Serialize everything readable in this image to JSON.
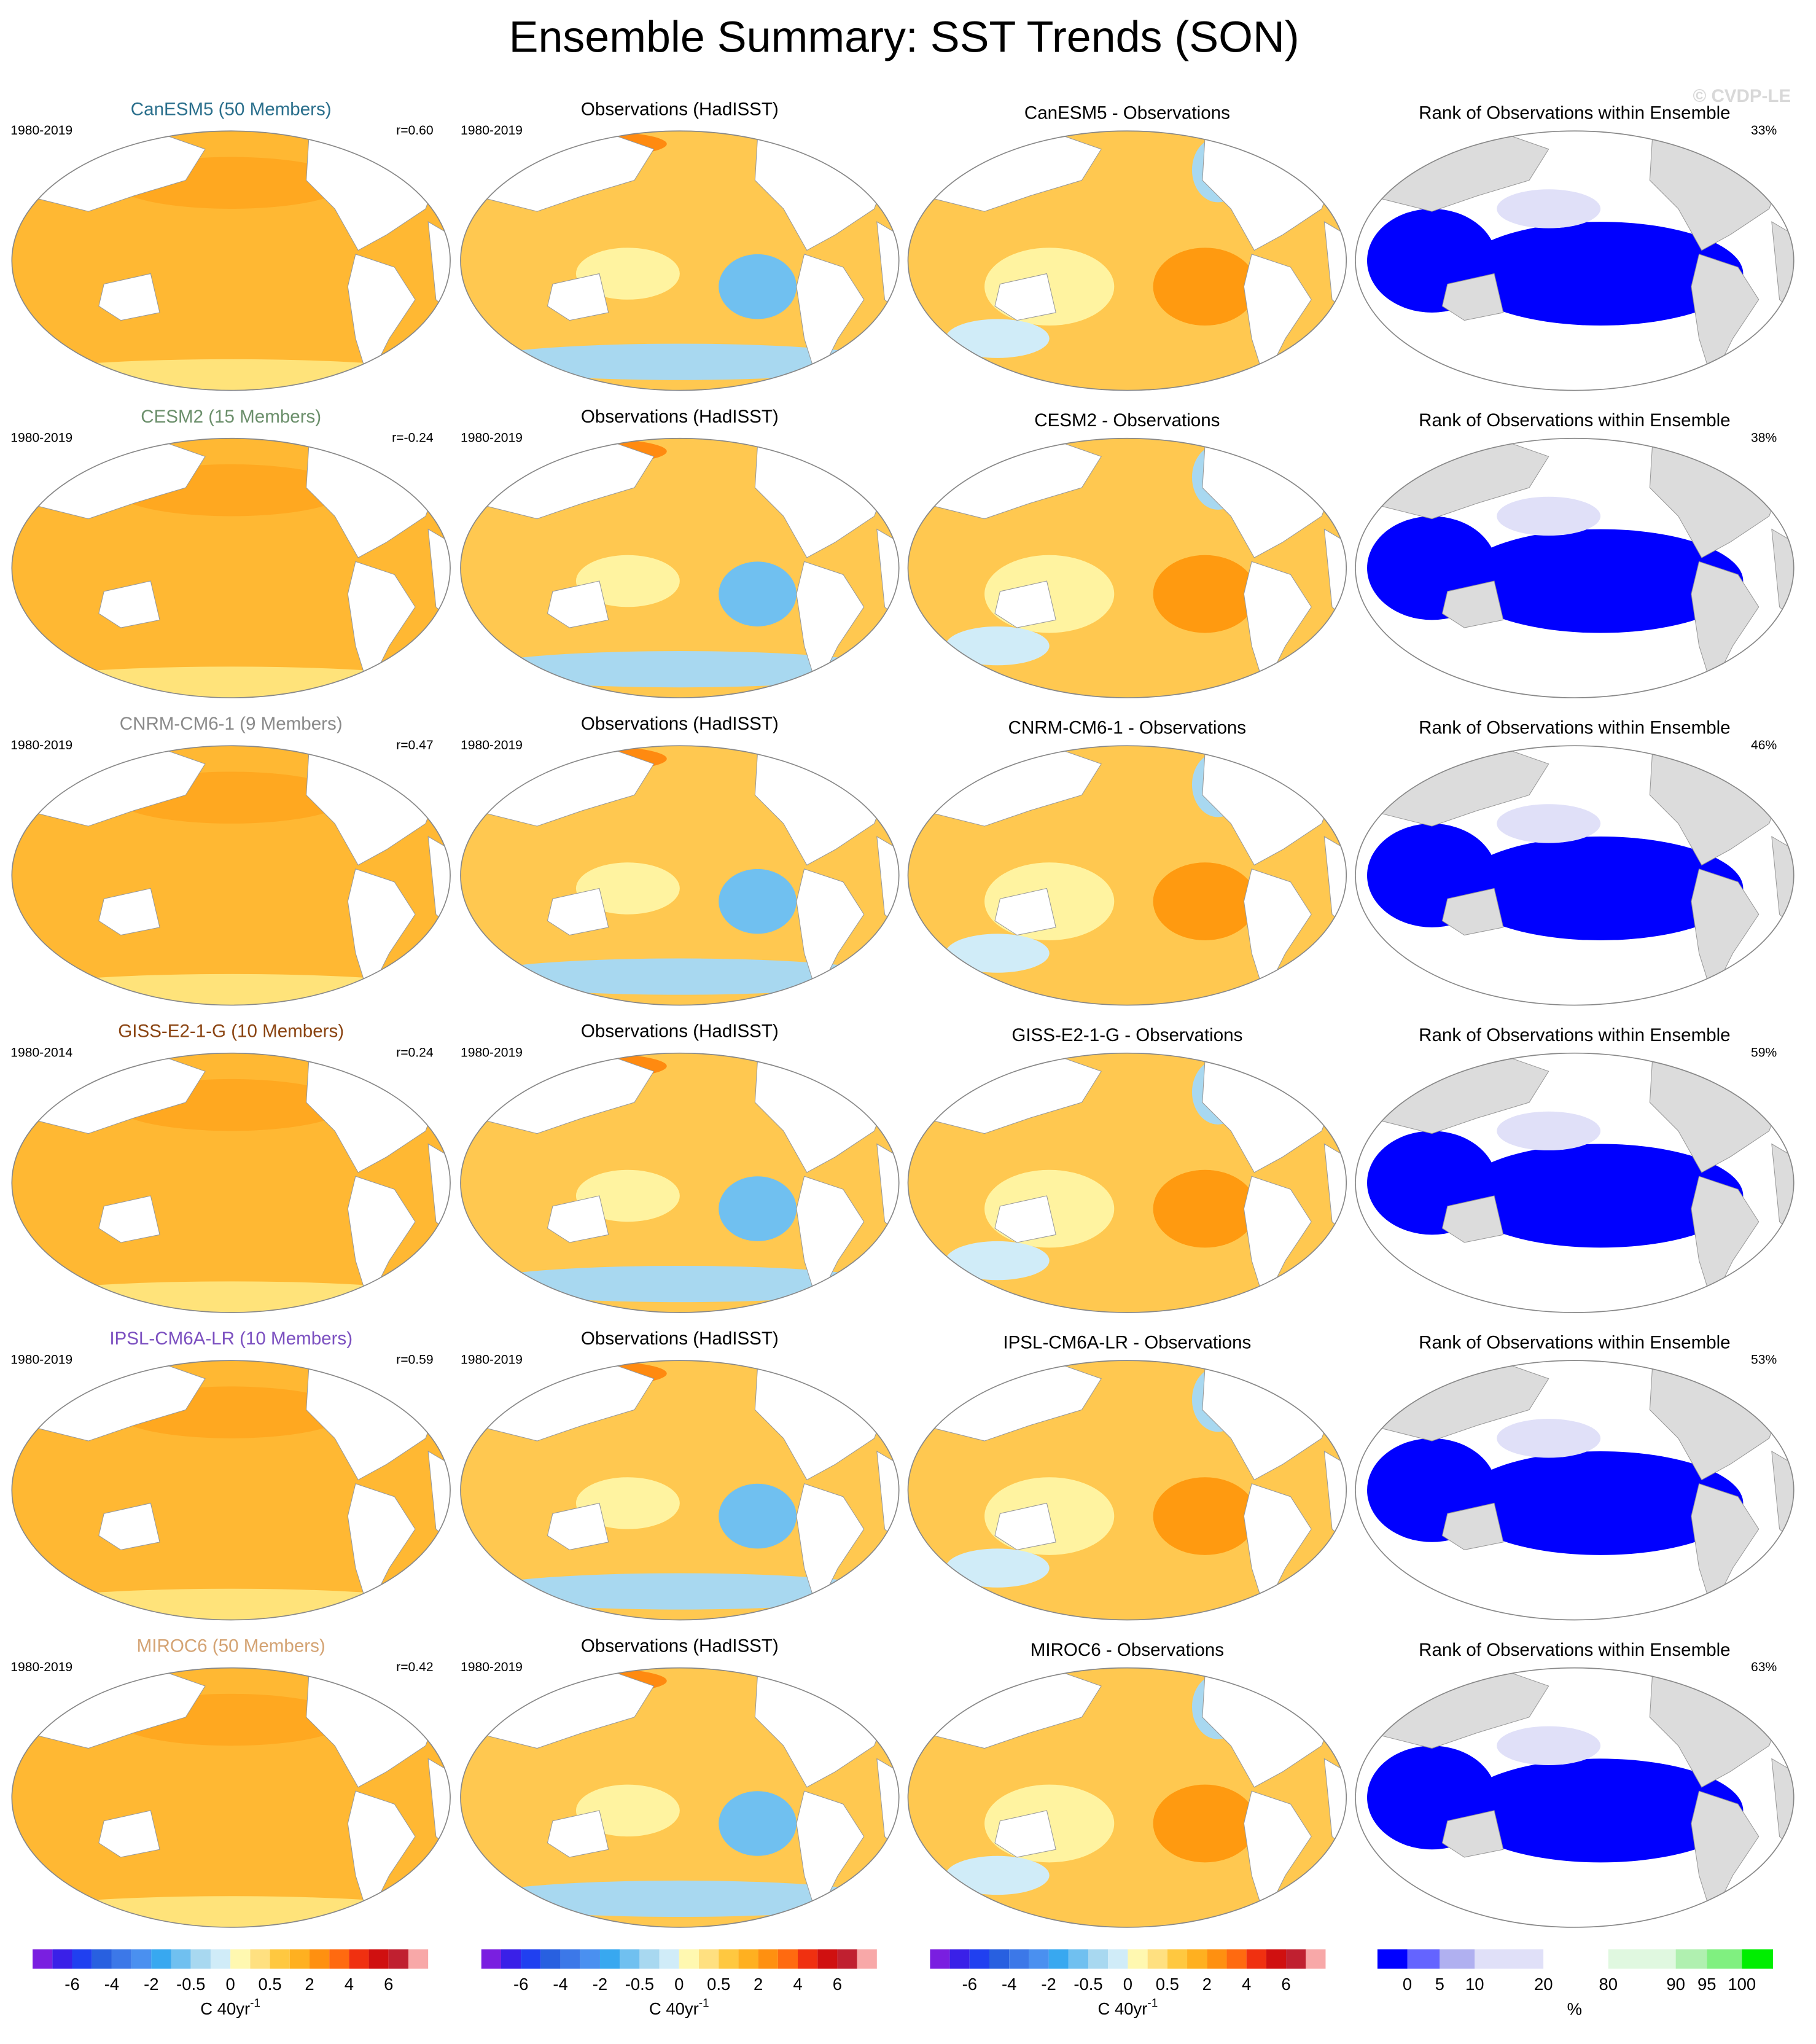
{
  "title": "Ensemble Summary: SST Trends (SON)",
  "watermark": "© CVDP-LE",
  "rows": [
    {
      "model_title": "CanESM5 (50 Members)",
      "model_color": "#2a6f8c",
      "model_years": "1980-2019",
      "r": "r=0.60",
      "obs_title": "Observations (HadISST)",
      "obs_years": "1980-2019",
      "diff_title": "CanESM5 - Observations",
      "rank_title": "Rank of Observations within Ensemble",
      "rank_pct": "33%"
    },
    {
      "model_title": "CESM2 (15 Members)",
      "model_color": "#6b8f6b",
      "model_years": "1980-2019",
      "r": "r=-0.24",
      "obs_title": "Observations (HadISST)",
      "obs_years": "1980-2019",
      "diff_title": "CESM2 - Observations",
      "rank_title": "Rank of Observations within Ensemble",
      "rank_pct": "38%"
    },
    {
      "model_title": "CNRM-CM6-1 (9 Members)",
      "model_color": "#8a8a8a",
      "model_years": "1980-2019",
      "r": "r=0.47",
      "obs_title": "Observations (HadISST)",
      "obs_years": "1980-2019",
      "diff_title": "CNRM-CM6-1 - Observations",
      "rank_title": "Rank of Observations within Ensemble",
      "rank_pct": "46%"
    },
    {
      "model_title": "GISS-E2-1-G (10 Members)",
      "model_color": "#8b4513",
      "model_years": "1980-2014",
      "r": "r=0.24",
      "obs_title": "Observations (HadISST)",
      "obs_years": "1980-2019",
      "diff_title": "GISS-E2-1-G - Observations",
      "rank_title": "Rank of Observations within Ensemble",
      "rank_pct": "59%"
    },
    {
      "model_title": "IPSL-CM6A-LR (10 Members)",
      "model_color": "#7b4fc0",
      "model_years": "1980-2019",
      "r": "r=0.59",
      "obs_title": "Observations (HadISST)",
      "obs_years": "1980-2019",
      "diff_title": "IPSL-CM6A-LR - Observations",
      "rank_title": "Rank of Observations within Ensemble",
      "rank_pct": "53%"
    },
    {
      "model_title": "MIROC6 (50 Members)",
      "model_color": "#d4a373",
      "model_years": "1980-2019",
      "r": "r=0.42",
      "obs_title": "Observations (HadISST)",
      "obs_years": "1980-2019",
      "diff_title": "MIROC6 - Observations",
      "rank_title": "Rank of Observations within Ensemble",
      "rank_pct": "63%"
    }
  ],
  "sst_colorbar": {
    "labels": [
      "-6",
      "-4",
      "-2",
      "-0.5",
      "0",
      "0.5",
      "2",
      "4",
      "6"
    ],
    "unit": "C 40yr",
    "unit_sup": "-1",
    "colors": [
      "#7a1fe0",
      "#3a20e8",
      "#2040f0",
      "#2860e0",
      "#3c78e8",
      "#4a90f0",
      "#38a8f0",
      "#70c0f0",
      "#a8d8f0",
      "#d0ecf8",
      "#fff8b0",
      "#ffe080",
      "#ffc840",
      "#ffb020",
      "#ff9010",
      "#ff6a10",
      "#f03010",
      "#d01010",
      "#c02030",
      "#f8a8a8"
    ]
  },
  "rank_colorbar": {
    "labels": [
      "0",
      "5",
      "10",
      "20",
      "80",
      "90",
      "95",
      "100"
    ],
    "unit": "%",
    "colors": [
      "#0000ff",
      "#6464ff",
      "#b0b0f0",
      "#e0e0f8",
      "#ffffff",
      "#e0f8e0",
      "#b0f0b0",
      "#80f080",
      "#00ee00"
    ]
  }
}
